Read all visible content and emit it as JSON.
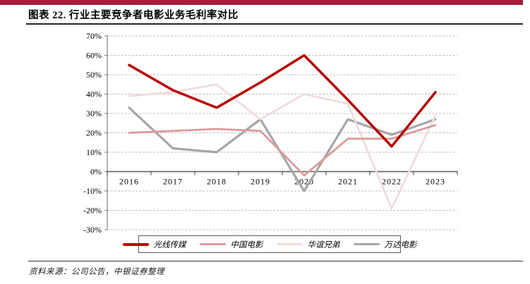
{
  "page": {
    "title": "图表 22. 行业主要竞争者电影业务毛利率对比",
    "source_note": "资料来源：公司公告，中银证券整理",
    "accent_bar_color": "#A81C3B"
  },
  "chart_data": {
    "type": "line",
    "title": "图表 22. 行业主要竞争者电影业务毛利率对比",
    "categories": [
      "2016",
      "2017",
      "2018",
      "2019",
      "2020",
      "2021",
      "2022",
      "2023"
    ],
    "series": [
      {
        "name": "光线传媒",
        "color": "#C00000",
        "stroke_width": 3.5,
        "values": [
          55,
          42,
          33,
          46,
          60,
          37,
          13,
          41
        ]
      },
      {
        "name": "中国电影",
        "color": "#DC9B99",
        "stroke_width": 2.8,
        "values": [
          20,
          21,
          22,
          21,
          -2,
          17,
          17,
          24
        ]
      },
      {
        "name": "华谊兄弟",
        "color": "#F2DCDB",
        "stroke_width": 2.8,
        "values": [
          39,
          41,
          45,
          27,
          40,
          35,
          -19,
          29
        ]
      },
      {
        "name": "万达电影",
        "color": "#A6A6A6",
        "stroke_width": 3.2,
        "values": [
          33,
          12,
          10,
          27,
          -10,
          27,
          19,
          27
        ]
      }
    ],
    "ylabel": "",
    "xlabel": "",
    "ylim": [
      -30,
      70
    ],
    "ytick_values": [
      70,
      60,
      50,
      40,
      30,
      20,
      10,
      0,
      -10,
      -20,
      -30
    ],
    "ytick_labels": [
      "70%",
      "60%",
      "50%",
      "40%",
      "30%",
      "20%",
      "10%",
      "0%",
      "-10%",
      "-20%",
      "-30%"
    ],
    "grid": "horizontal-dashed",
    "zero_axis": true,
    "legend_position": "bottom",
    "colors": {
      "gridline": "#BFBFBF",
      "axis_line": "#808080",
      "zero_line": "#595959",
      "tick_text": "#000000"
    }
  }
}
